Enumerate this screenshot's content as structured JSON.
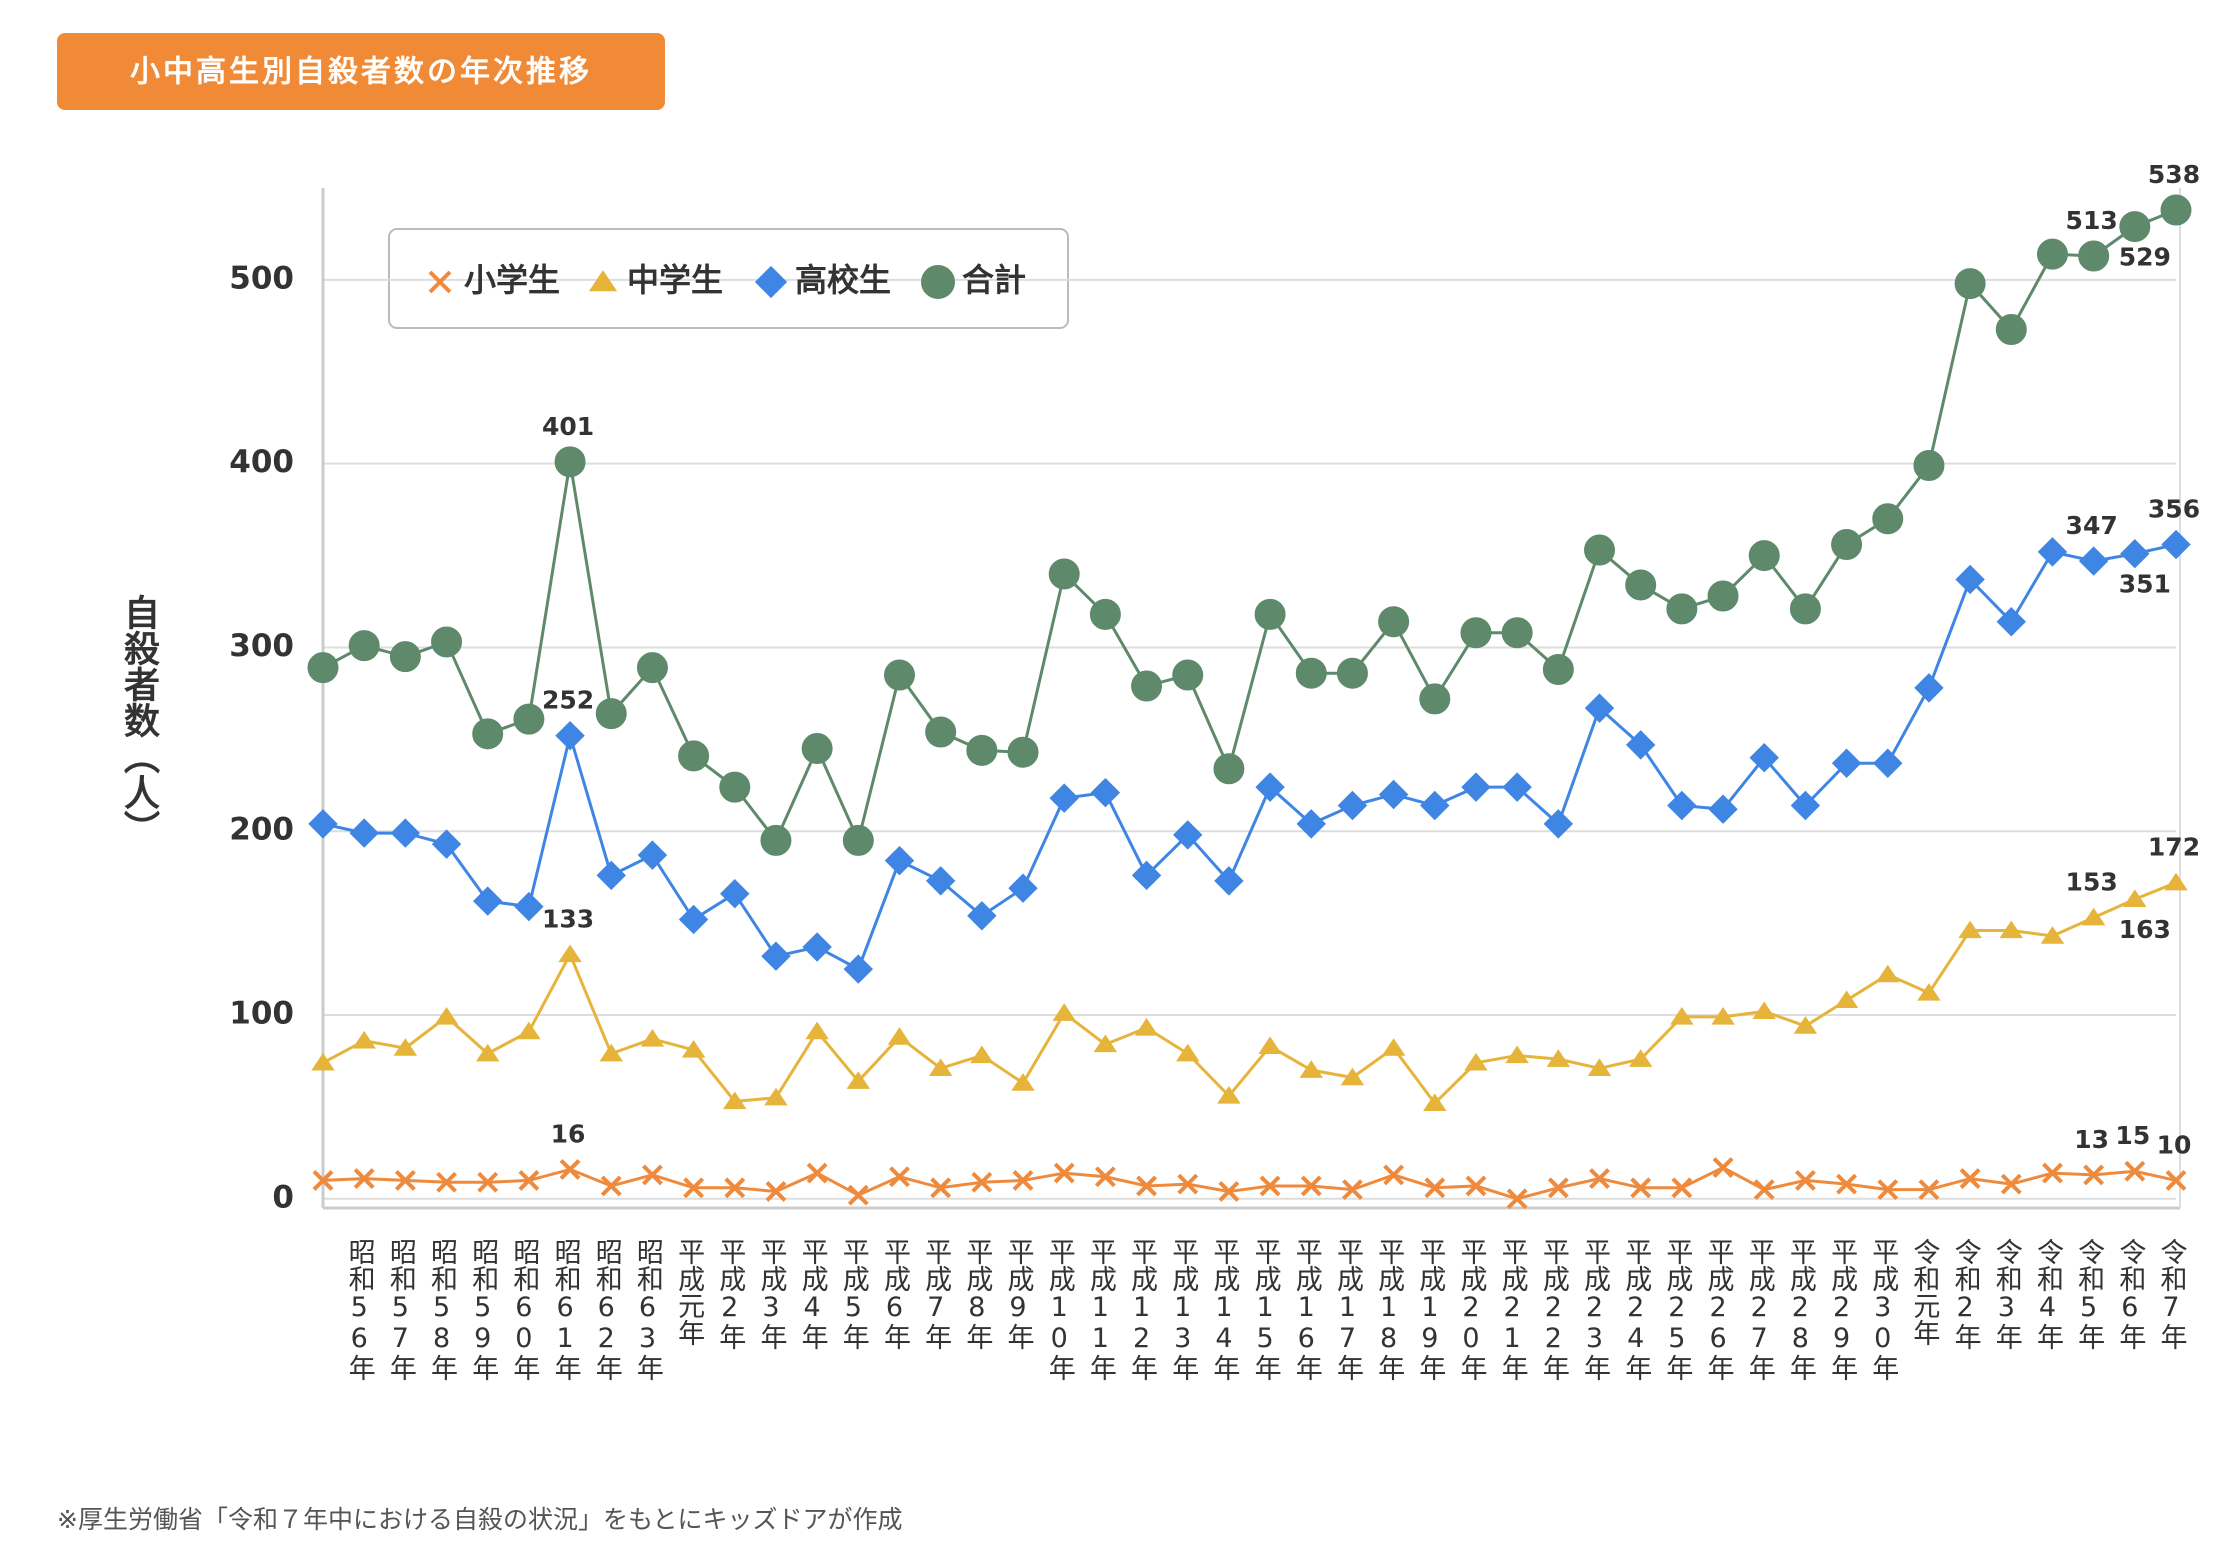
{
  "chart_data": {
    "type": "line",
    "title": "小中高生別自殺者数の年次推移",
    "y_label": "自殺者数（人）",
    "note": "※厚生労働省「令和７年中における自殺の状況」をもとにキッズドアが作成",
    "categories": [
      null,
      "昭和56年",
      "昭和57年",
      "昭和58年",
      "昭和59年",
      "昭和60年",
      "昭和61年",
      "昭和62年",
      "昭和63年",
      "平成元年",
      "平成2年",
      "平成3年",
      "平成4年",
      "平成5年",
      "平成6年",
      "平成7年",
      "平成8年",
      "平成9年",
      "平成10年",
      "平成11年",
      "平成12年",
      "平成13年",
      "平成14年",
      "平成15年",
      "平成16年",
      "平成17年",
      "平成18年",
      "平成19年",
      "平成20年",
      "平成21年",
      "平成22年",
      "平成23年",
      "平成24年",
      "平成25年",
      "平成26年",
      "平成27年",
      "平成28年",
      "平成29年",
      "平成30年",
      "令和元年",
      "令和2年",
      "令和3年",
      "令和4年",
      "令和5年",
      "令和6年",
      "令和7年"
    ],
    "ylim": [
      -5,
      550
    ],
    "yticks": [
      0,
      100,
      200,
      300,
      400,
      500
    ],
    "grid": true,
    "series": [
      {
        "name": "小学生",
        "color": "#ef8a3d",
        "marker": "x",
        "values": [
          10,
          11,
          10,
          9,
          9,
          10,
          16,
          7,
          13,
          6,
          6,
          4,
          14,
          2,
          12,
          6,
          9,
          10,
          14,
          12,
          7,
          8,
          4,
          7,
          7,
          5,
          13,
          6,
          7,
          0,
          6,
          11,
          6,
          6,
          17,
          5,
          10,
          8,
          5,
          5,
          11,
          8,
          14,
          13,
          15,
          10
        ],
        "value_labels": [
          null,
          null,
          null,
          null,
          null,
          null,
          "16",
          null,
          null,
          null,
          null,
          null,
          null,
          null,
          null,
          null,
          null,
          null,
          null,
          null,
          null,
          null,
          null,
          null,
          null,
          null,
          null,
          null,
          null,
          null,
          null,
          null,
          null,
          null,
          null,
          null,
          null,
          null,
          null,
          null,
          null,
          null,
          null,
          "13",
          "15",
          "10"
        ]
      },
      {
        "name": "中学生",
        "color": "#e6b43a",
        "marker": "triangle",
        "values": [
          74,
          86,
          82,
          99,
          79,
          91,
          133,
          79,
          87,
          81,
          53,
          55,
          91,
          64,
          88,
          71,
          78,
          63,
          101,
          84,
          93,
          79,
          56,
          83,
          70,
          66,
          82,
          52,
          74,
          78,
          76,
          71,
          76,
          99,
          99,
          102,
          94,
          108,
          122,
          112,
          146,
          146,
          143,
          153,
          163,
          172
        ],
        "value_labels": [
          null,
          null,
          null,
          null,
          null,
          null,
          "133",
          null,
          null,
          null,
          null,
          null,
          null,
          null,
          null,
          null,
          null,
          null,
          null,
          null,
          null,
          null,
          null,
          null,
          null,
          null,
          null,
          null,
          null,
          null,
          null,
          null,
          null,
          null,
          null,
          null,
          null,
          null,
          null,
          null,
          null,
          null,
          null,
          "153",
          "163",
          "172"
        ]
      },
      {
        "name": "高校生",
        "color": "#3f86e4",
        "marker": "diamond",
        "values": [
          204,
          199,
          199,
          193,
          162,
          159,
          252,
          176,
          187,
          152,
          166,
          132,
          137,
          125,
          184,
          173,
          154,
          169,
          218,
          221,
          176,
          198,
          173,
          224,
          204,
          214,
          220,
          214,
          224,
          224,
          204,
          267,
          247,
          214,
          212,
          240,
          214,
          237,
          237,
          278,
          337,
          314,
          352,
          347,
          351,
          356
        ],
        "value_labels": [
          null,
          null,
          null,
          null,
          null,
          null,
          "252",
          null,
          null,
          null,
          null,
          null,
          null,
          null,
          null,
          null,
          null,
          null,
          null,
          null,
          null,
          null,
          null,
          null,
          null,
          null,
          null,
          null,
          null,
          null,
          null,
          null,
          null,
          null,
          null,
          null,
          null,
          null,
          null,
          null,
          null,
          null,
          null,
          "347",
          "351",
          "356"
        ]
      },
      {
        "name": "合計",
        "color": "#5e8a6b",
        "marker": "circle",
        "values": [
          289,
          301,
          295,
          303,
          253,
          261,
          401,
          264,
          289,
          241,
          224,
          195,
          245,
          195,
          285,
          254,
          244,
          243,
          340,
          318,
          279,
          285,
          234,
          318,
          286,
          286,
          314,
          272,
          308,
          308,
          288,
          353,
          334,
          321,
          328,
          350,
          321,
          356,
          370,
          399,
          498,
          473,
          514,
          513,
          529,
          538
        ],
        "value_labels": [
          null,
          null,
          null,
          null,
          null,
          null,
          "401",
          null,
          null,
          null,
          null,
          null,
          null,
          null,
          null,
          null,
          null,
          null,
          null,
          null,
          null,
          null,
          null,
          null,
          null,
          null,
          null,
          null,
          null,
          null,
          null,
          null,
          null,
          null,
          null,
          null,
          null,
          null,
          null,
          null,
          null,
          null,
          null,
          "513",
          "529",
          "538"
        ]
      }
    ]
  }
}
